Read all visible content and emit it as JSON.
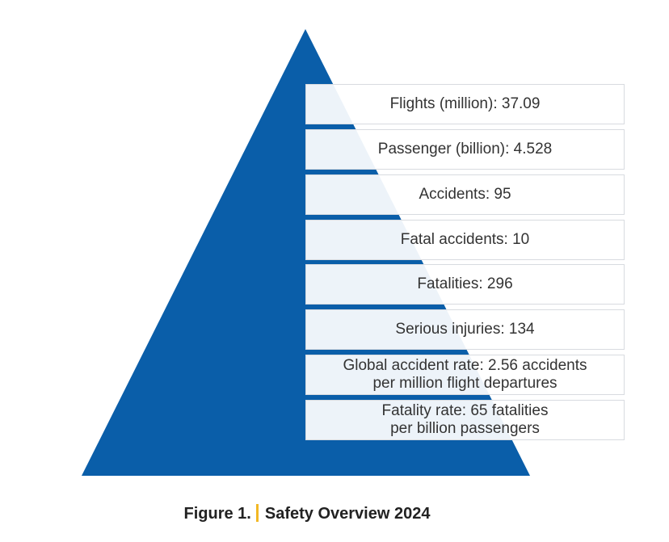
{
  "figure": {
    "label": "Figure 1.",
    "title": "Safety Overview 2024"
  },
  "colors": {
    "pyramid": "#0a5ea9",
    "accent_bar": "#f2b824",
    "text": "#333333"
  },
  "rows": [
    {
      "lines": [
        "Flights (million): 37.09"
      ]
    },
    {
      "lines": [
        "Passenger (billion): 4.528"
      ]
    },
    {
      "lines": [
        "Accidents: 95"
      ]
    },
    {
      "lines": [
        "Fatal accidents: 10"
      ]
    },
    {
      "lines": [
        "Fatalities: 296"
      ]
    },
    {
      "lines": [
        "Serious injuries: 134"
      ]
    },
    {
      "lines": [
        "Global accident rate: 2.56 accidents",
        "per million flight departures"
      ]
    },
    {
      "lines": [
        "Fatality rate: 65 fatalities",
        "per billion passengers"
      ]
    }
  ]
}
